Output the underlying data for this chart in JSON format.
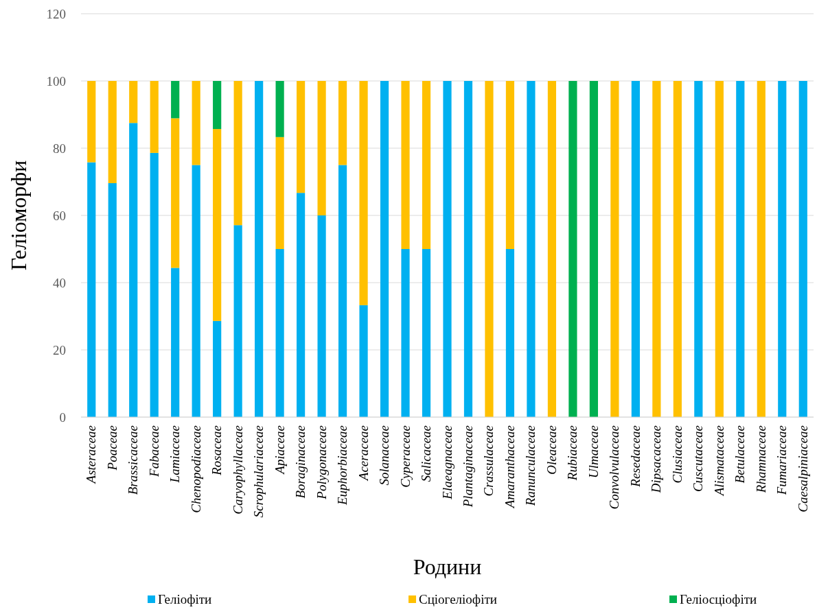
{
  "chart_data": {
    "type": "bar",
    "stacked": true,
    "xlabel": "Родини",
    "ylabel": "Геліоморфи",
    "categories": [
      "Asteraceae",
      "Poaceae",
      "Brassicaceae",
      "Fabaceae",
      "Lamiaceae",
      "Chenopodiaceae",
      "Rosaceae",
      "Caryophyllaceae",
      "Scrophulariaceae",
      "Apiaceae",
      "Boraginaceae",
      "Polygonaceae",
      "Euphorbiaceae",
      "Aceraceae",
      "Solanaceae",
      "Cyperaceae",
      "Salicaceae",
      "Elaeagnaceae",
      "Plantaginaceae",
      "Crassulaceae",
      "Amaranthaceae",
      "Ranunculaceae",
      "Oleaceae",
      "Rubiaceae",
      "Ulmaceae",
      "Convolvulaceae",
      "Resedaceae",
      "Dipsacaceae",
      "Clusiaceae",
      "Cuscutaceae",
      "Alismataceae",
      "Betulaceae",
      "Rhamnaceae",
      "Fumariaceae",
      "Caesalpiniaceae"
    ],
    "series": [
      {
        "name": "Геліофіти",
        "color": "#00b0f0",
        "values": [
          75.8,
          69.6,
          87.5,
          78.6,
          44.4,
          75,
          28.6,
          57.1,
          100,
          50,
          66.7,
          60,
          75,
          33.3,
          100,
          50,
          50,
          100,
          100,
          0,
          50,
          100,
          0,
          0,
          0,
          0,
          100,
          0,
          0,
          100,
          0,
          100,
          0,
          100,
          100
        ]
      },
      {
        "name": "Сціогеліофіти",
        "color": "#ffc000",
        "values": [
          24.2,
          30.4,
          12.5,
          21.4,
          44.5,
          25,
          57.1,
          42.9,
          0,
          33.3,
          33.3,
          40,
          25,
          66.7,
          0,
          50,
          50,
          0,
          0,
          100,
          50,
          0,
          100,
          0,
          0,
          100,
          0,
          100,
          100,
          0,
          100,
          0,
          100,
          0,
          0
        ]
      },
      {
        "name": "Геліосціофіти",
        "color": "#00b050",
        "values": [
          0,
          0,
          0,
          0,
          11.1,
          0,
          14.3,
          0,
          0,
          16.7,
          0,
          0,
          0,
          0,
          0,
          0,
          0,
          0,
          0,
          0,
          0,
          0,
          0,
          100,
          100,
          0,
          0,
          0,
          0,
          0,
          0,
          0,
          0,
          0,
          0
        ]
      }
    ],
    "ylim": [
      0,
      120
    ],
    "yticks": [
      0,
      20,
      40,
      60,
      80,
      100,
      120
    ],
    "grid": "y",
    "legend": "bottom"
  }
}
